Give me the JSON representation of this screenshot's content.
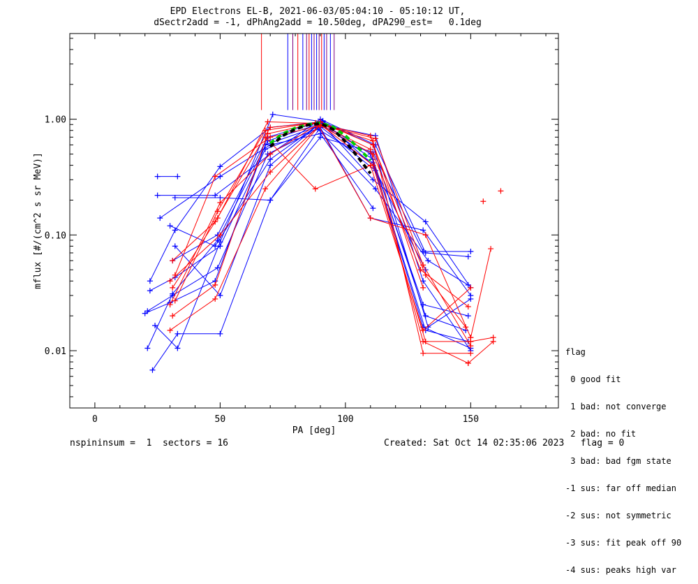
{
  "header": {
    "title_line1": "EPD Electrons EL-B, 2021-06-03/05:04:10 - 05:10:12 UT,",
    "title_line2": "dSectr2add = -1, dPhAng2add = 10.50deg, dPA290_est=   0.1deg"
  },
  "footer": {
    "left": "nspininsum =  1  sectors = 16",
    "right": "Created: Sat Oct 14 02:35:06 2023   flag = 0"
  },
  "legend": {
    "title": "flag",
    "items": [
      " 0 good fit",
      " 1 bad: not converge",
      " 2 bad: no fit",
      " 3 bad: bad fgm state",
      "-1 sus: far off median",
      "-2 sus: not symmetric",
      "-3 sus: fit peak off 90",
      "-4 sus: peaks high var"
    ]
  },
  "colors": {
    "blue": "#0000ff",
    "red": "#ff0000",
    "purple": "#7f007f",
    "green": "#00cc00",
    "black": "#000000"
  },
  "chart_data": {
    "type": "line",
    "xlabel": "PA [deg]",
    "ylabel": "mflux [#/(cm^2 s sr MeV)]",
    "xlim": [
      -10,
      185
    ],
    "ylim": [
      0.0032,
      5.5
    ],
    "ylog": true,
    "x_ticks": [
      0,
      50,
      100,
      150
    ],
    "y_ticks": [
      {
        "v": 0.01,
        "label": "0.01"
      },
      {
        "v": 0.1,
        "label": "0.10"
      },
      {
        "v": 1.0,
        "label": "1.00"
      }
    ],
    "vertical_lines": [
      {
        "x": 66.5,
        "color": "red"
      },
      {
        "x": 77,
        "color": "blue"
      },
      {
        "x": 79,
        "color": "purple"
      },
      {
        "x": 81,
        "color": "red"
      },
      {
        "x": 83,
        "color": "blue"
      },
      {
        "x": 84.5,
        "color": "purple"
      },
      {
        "x": 85.5,
        "color": "red"
      },
      {
        "x": 86.5,
        "color": "blue"
      },
      {
        "x": 87.5,
        "color": "purple"
      },
      {
        "x": 88.5,
        "color": "blue"
      },
      {
        "x": 89.5,
        "color": "purple"
      },
      {
        "x": 90.5,
        "color": "red"
      },
      {
        "x": 91.5,
        "color": "blue"
      },
      {
        "x": 92.5,
        "color": "purple"
      },
      {
        "x": 94,
        "color": "blue"
      },
      {
        "x": 95.5,
        "color": "purple"
      }
    ],
    "vertical_line_range": [
      1.2,
      5.5
    ],
    "series": [
      {
        "color": "blue",
        "x": [
          20,
          30,
          48,
          68,
          88,
          111,
          131,
          150
        ],
        "y": [
          0.021,
          0.026,
          0.04,
          0.6,
          0.85,
          0.42,
          0.016,
          0.0105
        ]
      },
      {
        "color": "blue",
        "x": [
          21,
          31,
          49,
          69,
          89,
          112,
          132,
          149
        ],
        "y": [
          0.0105,
          0.031,
          0.09,
          0.65,
          0.9,
          0.36,
          0.015,
          0.012
        ]
      },
      {
        "color": "blue",
        "x": [
          22,
          32,
          50,
          70,
          90,
          111,
          132,
          150
        ],
        "y": [
          0.04,
          0.11,
          0.39,
          0.85,
          0.95,
          0.3,
          0.13,
          0.035
        ]
      },
      {
        "color": "blue",
        "x": [
          24,
          33,
          50,
          71,
          91,
          111,
          133,
          150
        ],
        "y": [
          0.0165,
          0.0105,
          0.087,
          1.1,
          0.95,
          0.6,
          0.016,
          0.028
        ]
      },
      {
        "color": "blue",
        "x": [
          25,
          33
        ],
        "y": [
          0.32,
          0.32
        ]
      },
      {
        "color": "blue",
        "x": [
          25,
          48,
          70,
          90,
          112,
          132,
          149
        ],
        "y": [
          0.22,
          0.22,
          0.5,
          1.0,
          0.6,
          0.07,
          0.065
        ]
      },
      {
        "color": "blue",
        "x": [
          26,
          50,
          70,
          90,
          111
        ],
        "y": [
          0.14,
          0.32,
          0.6,
          0.75,
          0.17
        ]
      },
      {
        "color": "blue",
        "x": [
          23,
          33,
          50,
          70,
          90,
          111,
          131,
          150
        ],
        "y": [
          0.0068,
          0.014,
          0.014,
          0.2,
          0.7,
          0.52,
          0.072,
          0.072
        ]
      },
      {
        "color": "blue",
        "x": [
          21,
          31,
          49,
          69,
          89,
          112,
          133,
          149
        ],
        "y": [
          0.022,
          0.03,
          0.052,
          0.5,
          0.82,
          0.25,
          0.06,
          0.037
        ]
      },
      {
        "color": "blue",
        "x": [
          22,
          32,
          50,
          68,
          92,
          112,
          131,
          150
        ],
        "y": [
          0.033,
          0.043,
          0.08,
          0.55,
          0.88,
          0.72,
          0.04,
          0.01
        ]
      },
      {
        "color": "blue",
        "x": [
          32,
          50,
          70,
          90,
          110,
          131,
          150
        ],
        "y": [
          0.21,
          0.21,
          0.2,
          0.85,
          0.14,
          0.11,
          0.03
        ]
      },
      {
        "color": "blue",
        "x": [
          30,
          48,
          70,
          90,
          111,
          132,
          148
        ],
        "y": [
          0.12,
          0.08,
          0.45,
          0.92,
          0.45,
          0.02,
          0.015
        ]
      },
      {
        "color": "blue",
        "x": [
          31,
          49,
          69,
          90,
          110,
          131,
          149
        ],
        "y": [
          0.06,
          0.1,
          0.7,
          0.95,
          0.5,
          0.025,
          0.02
        ]
      },
      {
        "color": "blue",
        "x": [
          32,
          50,
          70,
          91,
          111,
          132
        ],
        "y": [
          0.08,
          0.03,
          0.4,
          0.97,
          0.4,
          0.05
        ]
      },
      {
        "color": "red",
        "x": [
          30,
          48,
          68,
          90,
          111,
          131,
          150
        ],
        "y": [
          0.015,
          0.028,
          0.25,
          0.9,
          0.65,
          0.0095,
          0.0095
        ]
      },
      {
        "color": "red",
        "x": [
          31,
          49,
          69,
          89,
          110,
          131,
          149
        ],
        "y": [
          0.035,
          0.14,
          0.95,
          0.92,
          0.55,
          0.012,
          0.0078
        ]
      },
      {
        "color": "red",
        "x": [
          32,
          48,
          70,
          90,
          111,
          130,
          149
        ],
        "y": [
          0.045,
          0.32,
          0.7,
          0.88,
          0.5,
          0.05,
          0.024
        ]
      },
      {
        "color": "red",
        "x": [
          30,
          50,
          70,
          89,
          110,
          132,
          150
        ],
        "y": [
          0.025,
          0.19,
          0.5,
          0.9,
          0.14,
          0.1,
          0.013
        ]
      },
      {
        "color": "red",
        "x": [
          31,
          48,
          69,
          88,
          112,
          131,
          150
        ],
        "y": [
          0.02,
          0.037,
          0.75,
          0.92,
          0.68,
          0.055,
          0.011
        ]
      },
      {
        "color": "red",
        "x": [
          32,
          49,
          68,
          90,
          111,
          132,
          148
        ],
        "y": [
          0.027,
          0.16,
          0.8,
          0.95,
          0.6,
          0.045,
          0.016
        ]
      },
      {
        "color": "red",
        "x": [
          31,
          48,
          70,
          88,
          110,
          131
        ],
        "y": [
          0.06,
          0.13,
          0.85,
          0.93,
          0.72,
          0.035
        ]
      },
      {
        "color": "red",
        "x": [
          30,
          50,
          70,
          90,
          111,
          132,
          150
        ],
        "y": [
          0.04,
          0.1,
          0.35,
          0.9,
          0.4,
          0.012,
          0.012
        ]
      },
      {
        "color": "red",
        "x": [
          68,
          88,
          110,
          131,
          150
        ],
        "y": [
          0.7,
          0.25,
          0.4,
          0.015,
          0.035
        ]
      },
      {
        "color": "red",
        "x": [
          150,
          158
        ],
        "y": [
          0.013,
          0.076
        ]
      },
      {
        "color": "red",
        "x": [
          150,
          159
        ],
        "y": [
          0.012,
          0.013
        ]
      },
      {
        "color": "red",
        "x": [
          149,
          159
        ],
        "y": [
          0.0078,
          0.012
        ]
      }
    ],
    "isolated_points": [
      {
        "x": 155,
        "y": 0.195,
        "color": "red"
      },
      {
        "x": 162,
        "y": 0.24,
        "color": "red"
      }
    ],
    "fit_curves": [
      {
        "color": "green",
        "dash": true,
        "x": [
          70,
          75,
          80,
          85,
          90,
          95,
          100,
          105,
          110
        ],
        "y": [
          0.62,
          0.75,
          0.84,
          0.9,
          0.93,
          0.86,
          0.72,
          0.57,
          0.44
        ]
      },
      {
        "color": "black",
        "dash": true,
        "x": [
          70,
          75,
          80,
          85,
          90,
          95,
          100,
          105,
          110
        ],
        "y": [
          0.58,
          0.72,
          0.82,
          0.89,
          0.92,
          0.82,
          0.64,
          0.47,
          0.34
        ]
      }
    ]
  }
}
